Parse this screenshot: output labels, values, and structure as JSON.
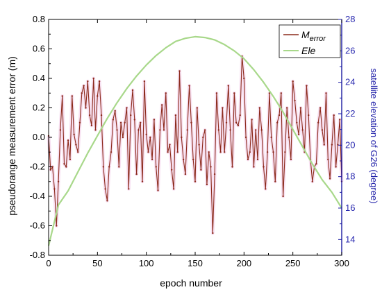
{
  "chart_data": {
    "type": "line",
    "xlabel": "epoch number",
    "ylabel_left": "pseudorange measurement error (m)",
    "ylabel_right": "satellite elevation of G26 (degree)",
    "xlim": [
      0,
      300
    ],
    "ylim_left": [
      -0.8,
      0.8
    ],
    "ylim_right": [
      13,
      28
    ],
    "x_ticks": [
      "0",
      "50",
      "100",
      "150",
      "200",
      "250",
      "300"
    ],
    "y_left_ticks": [
      "-0.8",
      "-0.6",
      "-0.4",
      "-0.2",
      "0.0",
      "0.2",
      "0.4",
      "0.6",
      "0.8"
    ],
    "y_right_ticks": [
      "14",
      "16",
      "18",
      "20",
      "22",
      "24",
      "26",
      "28"
    ],
    "grid": false,
    "legend_position": "top-right",
    "legend": {
      "merror_main": "M",
      "merror_sub": "error",
      "ele": "Ele"
    },
    "series": [
      {
        "name": "Merror",
        "axis": "left",
        "color": "#8b2a1a",
        "x": [
          0,
          2,
          4,
          6,
          8,
          10,
          12,
          14,
          16,
          18,
          20,
          22,
          24,
          26,
          28,
          30,
          32,
          34,
          36,
          38,
          40,
          42,
          44,
          46,
          48,
          50,
          52,
          54,
          56,
          58,
          60,
          62,
          64,
          66,
          68,
          70,
          72,
          74,
          76,
          78,
          80,
          82,
          84,
          86,
          88,
          90,
          92,
          94,
          96,
          98,
          100,
          102,
          104,
          106,
          108,
          110,
          112,
          114,
          116,
          118,
          120,
          122,
          124,
          126,
          128,
          130,
          132,
          134,
          136,
          138,
          140,
          142,
          144,
          146,
          148,
          150,
          152,
          154,
          156,
          158,
          160,
          162,
          164,
          166,
          168,
          170,
          172,
          174,
          176,
          178,
          180,
          182,
          184,
          186,
          188,
          190,
          192,
          194,
          196,
          198,
          200,
          202,
          204,
          206,
          208,
          210,
          212,
          214,
          216,
          218,
          220,
          222,
          224,
          226,
          228,
          230,
          232,
          234,
          236,
          238,
          240,
          242,
          244,
          246,
          248,
          250,
          252,
          254,
          256,
          258,
          260,
          262,
          264,
          266,
          268,
          270,
          272,
          274,
          276,
          278,
          280,
          282,
          284,
          286,
          288,
          290,
          292,
          294,
          296,
          298,
          300
        ],
        "values": [
          0.01,
          -0.22,
          -0.2,
          -0.35,
          -0.6,
          -0.3,
          0.05,
          0.28,
          -0.18,
          -0.2,
          -0.02,
          -0.15,
          0.28,
          0.02,
          -0.05,
          -0.1,
          0.1,
          0.3,
          0.35,
          0.2,
          0.38,
          0.15,
          0.08,
          0.4,
          0.05,
          0.28,
          0.38,
          0.15,
          -0.2,
          -0.35,
          -0.43,
          -0.2,
          -0.1,
          0.12,
          0.18,
          0.05,
          -0.2,
          0.1,
          0.0,
          0.1,
          0.2,
          -0.35,
          0.15,
          0.32,
          0.12,
          -0.25,
          0.05,
          0.1,
          -0.3,
          0.38,
          0.02,
          -0.1,
          0.0,
          -0.15,
          0.12,
          -0.2,
          -0.36,
          0.05,
          0.22,
          0.05,
          0.3,
          -0.1,
          -0.05,
          -0.22,
          -0.35,
          0.15,
          -0.1,
          0.45,
          0.0,
          -0.15,
          -0.25,
          0.05,
          0.35,
          0.1,
          -0.15,
          -0.3,
          0.2,
          -0.05,
          -0.22,
          0.0,
          0.05,
          -0.32,
          -0.1,
          -0.2,
          -0.65,
          -0.25,
          0.3,
          0.05,
          -0.1,
          0.2,
          -0.1,
          0.1,
          0.35,
          0.05,
          -0.2,
          0.3,
          0.1,
          0.08,
          0.15,
          0.55,
          0.4,
          0.0,
          -0.15,
          -0.1,
          0.12,
          -0.2,
          0.05,
          -0.15,
          0.2,
          0.05,
          -0.2,
          -0.35,
          -0.1,
          0.3,
          0.0,
          -0.1,
          -0.3,
          0.1,
          0.15,
          0.3,
          -0.4,
          -0.1,
          0.2,
          0.0,
          -0.15,
          0.38,
          0.25,
          0.1,
          0.02,
          0.2,
          0.05,
          -0.1,
          0.35,
          0.15,
          -0.15,
          -0.3,
          -0.2,
          -0.18,
          0.1,
          0.2,
          0.05,
          -0.05,
          0.3,
          -0.15,
          -0.28,
          -0.05,
          0.15,
          -0.2,
          -0.05,
          0.12,
          -0.3
        ]
      },
      {
        "name": "Ele",
        "axis": "right",
        "color": "#a8d88a",
        "x": [
          0,
          10,
          20,
          30,
          40,
          50,
          60,
          70,
          80,
          90,
          100,
          110,
          120,
          130,
          140,
          150,
          160,
          170,
          180,
          190,
          200,
          210,
          220,
          230,
          240,
          250,
          260,
          270,
          280,
          290,
          300
        ],
        "values": [
          13.6,
          16.2,
          17.1,
          18.3,
          19.5,
          20.6,
          21.7,
          22.7,
          23.6,
          24.4,
          25.1,
          25.7,
          26.2,
          26.6,
          26.8,
          26.9,
          26.85,
          26.7,
          26.4,
          26.0,
          25.5,
          24.8,
          24.0,
          23.1,
          22.1,
          21.0,
          19.9,
          18.8,
          17.8,
          17.0,
          16.0
        ]
      }
    ]
  }
}
